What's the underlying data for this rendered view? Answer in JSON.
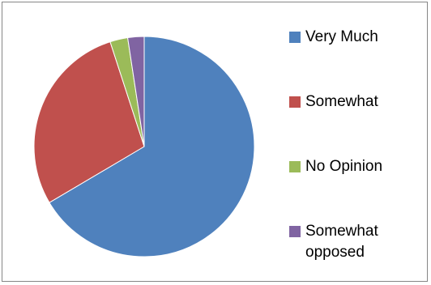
{
  "chart_data": {
    "type": "pie",
    "title": "",
    "slices": [
      {
        "label": "Very Much",
        "value": 66.5,
        "color": "#4F81BD"
      },
      {
        "label": "Somewhat",
        "value": 28.5,
        "color": "#C0504D"
      },
      {
        "label": "No Opinion",
        "value": 2.6,
        "color": "#9BBB59"
      },
      {
        "label": "Somewhat opposed",
        "value": 2.4,
        "color": "#8064A2"
      }
    ],
    "legend_position": "right"
  }
}
